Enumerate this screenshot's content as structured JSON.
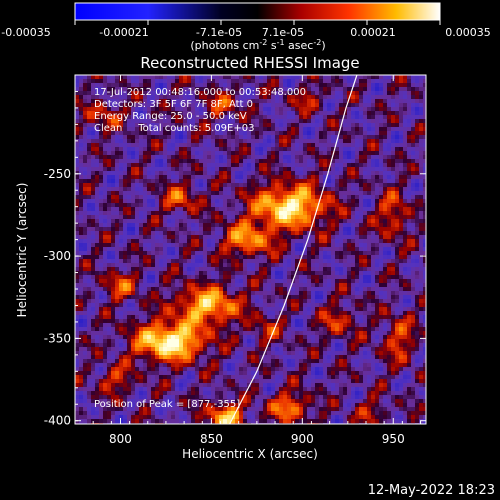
{
  "chart_data": {
    "type": "heatmap",
    "title": "Reconstructed RHESSI Image",
    "xlabel": "Heliocentric X (arcsec)",
    "ylabel": "Heliocentric Y (arcsec)",
    "xlim": [
      775,
      968
    ],
    "ylim": [
      -402,
      -190
    ],
    "xticks": [
      800,
      850,
      900,
      950
    ],
    "yticks": [
      -250,
      -300,
      -350,
      -400
    ],
    "colorbar": {
      "ticks": [
        "-0.00035",
        "-0.00021",
        "-7.1e-05",
        "7.1e-05",
        "0.00021",
        "0.00035"
      ],
      "range": [
        -0.00035,
        0.00035
      ],
      "label_main": "(photons cm",
      "label_sup1": "-2",
      "label_mid": " s",
      "label_sup2": "-1",
      "label_end": " asec",
      "label_sup3": "-2",
      "label_close": ")"
    },
    "annotations": [
      "17-Jul-2012 00:48:16.000 to 00:53:48.000",
      "Detectors: 3F 5F 6F 7F 8F, Att 0",
      "Energy Range: 25.0 - 50.0 keV",
      "Clean     Total counts: 5.09E+03"
    ],
    "peak_label": "Position of Peak = [877,-355]",
    "peak_position": [
      877,
      -355
    ],
    "limb_curve": [
      [
        860,
        -402
      ],
      [
        875,
        -370
      ],
      [
        890,
        -330
      ],
      [
        903,
        -290
      ],
      [
        914,
        -250
      ],
      [
        924,
        -210
      ],
      [
        930,
        -190
      ]
    ],
    "sources": [
      {
        "x": 827,
        "y": -352,
        "amp": 1.0,
        "sx": 13,
        "sy": 8
      },
      {
        "x": 848,
        "y": -330,
        "amp": 0.75,
        "sx": 12,
        "sy": 8
      },
      {
        "x": 893,
        "y": -270,
        "amp": 0.9,
        "sx": 14,
        "sy": 9
      },
      {
        "x": 870,
        "y": -290,
        "amp": 0.6,
        "sx": 10,
        "sy": 7
      },
      {
        "x": 858,
        "y": -398,
        "amp": 0.75,
        "sx": 7,
        "sy": 6
      },
      {
        "x": 893,
        "y": -392,
        "amp": 0.55,
        "sx": 8,
        "sy": 6
      },
      {
        "x": 833,
        "y": -265,
        "amp": 0.45,
        "sx": 7,
        "sy": 6
      },
      {
        "x": 800,
        "y": -318,
        "amp": 0.4,
        "sx": 7,
        "sy": 6
      },
      {
        "x": 797,
        "y": -375,
        "amp": 0.35,
        "sx": 7,
        "sy": 6
      },
      {
        "x": 950,
        "y": -275,
        "amp": 0.4,
        "sx": 6,
        "sy": 10
      },
      {
        "x": 953,
        "y": -350,
        "amp": 0.4,
        "sx": 6,
        "sy": 10
      },
      {
        "x": 920,
        "y": -340,
        "amp": 0.35,
        "sx": 7,
        "sy": 7
      },
      {
        "x": 856,
        "y": -208,
        "amp": 0.35,
        "sx": 7,
        "sy": 6
      },
      {
        "x": 790,
        "y": -215,
        "amp": 0.35,
        "sx": 7,
        "sy": 6
      },
      {
        "x": 903,
        "y": -205,
        "amp": 0.3,
        "sx": 6,
        "sy": 5
      },
      {
        "x": 880,
        "y": -345,
        "amp": 0.3,
        "sx": 6,
        "sy": 6
      },
      {
        "x": 938,
        "y": -395,
        "amp": 0.3,
        "sx": 6,
        "sy": 5
      }
    ],
    "grid": false
  },
  "footer": {
    "date": "12-May-2022 18:23"
  }
}
